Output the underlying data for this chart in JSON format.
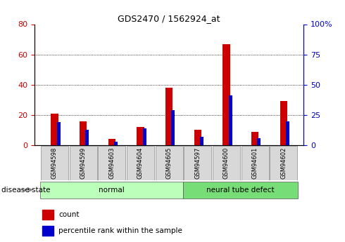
{
  "title": "GDS2470 / 1562924_at",
  "samples": [
    "GSM94598",
    "GSM94599",
    "GSM94603",
    "GSM94604",
    "GSM94605",
    "GSM94597",
    "GSM94600",
    "GSM94601",
    "GSM94602"
  ],
  "count_values": [
    21,
    16,
    4,
    12,
    38,
    10,
    67,
    9,
    29
  ],
  "percentile_values": [
    19,
    13,
    3,
    14,
    29,
    7,
    41,
    6,
    20
  ],
  "groups": [
    {
      "label": "normal",
      "start": 0,
      "end": 5,
      "color": "#bbffbb"
    },
    {
      "label": "neural tube defect",
      "start": 5,
      "end": 9,
      "color": "#77dd77"
    }
  ],
  "count_color": "#cc0000",
  "percentile_color": "#0000cc",
  "left_ylim": [
    0,
    80
  ],
  "right_ylim": [
    0,
    100
  ],
  "left_yticks": [
    0,
    20,
    40,
    60,
    80
  ],
  "right_yticks": [
    0,
    25,
    50,
    75,
    100
  ],
  "right_yticklabels": [
    "0",
    "25",
    "50",
    "75",
    "100%"
  ],
  "disease_state_label": "disease state",
  "legend_count_label": "count",
  "legend_percentile_label": "percentile rank within the sample",
  "bg_color": "#ffffff",
  "sample_box_color": "#d8d8d8"
}
